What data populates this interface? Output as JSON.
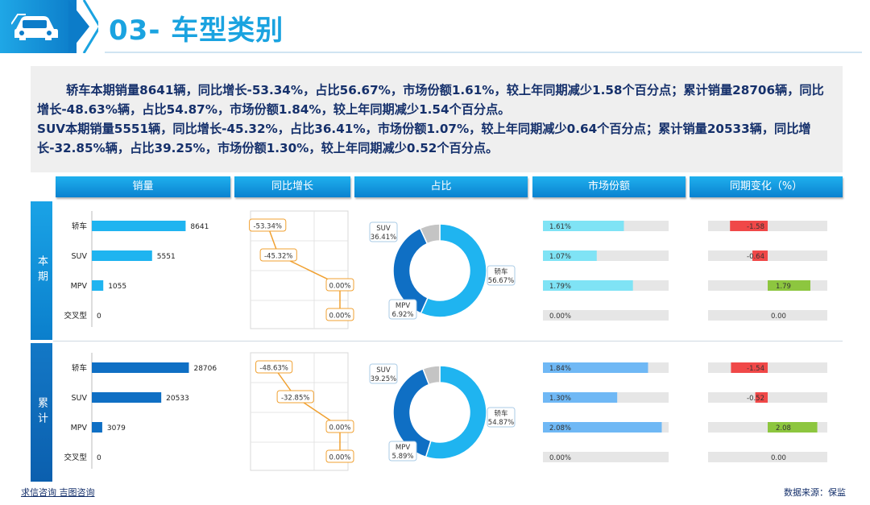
{
  "header": {
    "title": "03- 车型类别",
    "icon": "car-icon"
  },
  "summary": {
    "paragraph1": "轿车本期销量8641辆，同比增长-53.34%，占比56.67%，市场份额1.61%，较上年同期减少1.58个百分点；累计销量28706辆，同比增长-48.63%辆，占比54.87%，市场份额1.84%，较上年同期减少1.54个百分点。",
    "paragraph2": "SUV本期销量5551辆，同比增长-45.32%，占比36.41%，市场份额1.07%，较上年同期减少0.64个百分点；累计销量20533辆，同比增长-32.85%辆，占比39.25%，市场份额1.30%，较上年同期减少0.52个百分点。"
  },
  "columns": [
    "销量",
    "同比增长",
    "占比",
    "市场份额",
    "同期变化（%）"
  ],
  "sections": [
    {
      "label": "本期"
    },
    {
      "label": "累计"
    }
  ],
  "footer": {
    "left": "求信咨询  吉图咨询",
    "right": "数据来源：保监"
  },
  "colors": {
    "header_blue": "#1aa3e0",
    "bar_current": "#1fb4f0",
    "bar_cumulative": "#0f6fc4",
    "donut_light": "#1fb4f0",
    "donut_dark": "#0f6fc4",
    "donut_grey": "#c4c4c4",
    "share_current": "#7fe3f5",
    "share_cumulative": "#6fb8f5",
    "change_negative": "#f04848",
    "change_positive": "#8dc63f",
    "growth_line": "#f0a030"
  },
  "chart_data": [
    {
      "type": "bar",
      "panel": "销量",
      "section": "本期",
      "categories": [
        "轿车",
        "SUV",
        "MPV",
        "交叉型"
      ],
      "values": [
        8641,
        5551,
        1055,
        0
      ]
    },
    {
      "type": "line",
      "panel": "同比增长",
      "section": "本期",
      "categories": [
        "轿车",
        "SUV",
        "MPV",
        "交叉型"
      ],
      "values": [
        -53.34,
        -45.32,
        0.0,
        0.0
      ],
      "labels": [
        "-53.34%",
        "-45.32%",
        "0.00%",
        "0.00%"
      ]
    },
    {
      "type": "pie",
      "panel": "占比",
      "section": "本期",
      "slices": [
        {
          "name": "轿车",
          "value": 56.67,
          "label": "56.67%"
        },
        {
          "name": "SUV",
          "value": 36.41,
          "label": "36.41%"
        },
        {
          "name": "MPV",
          "value": 6.92,
          "label": "6.92%"
        }
      ]
    },
    {
      "type": "bar",
      "panel": "市场份额",
      "section": "本期",
      "categories": [
        "轿车",
        "SUV",
        "MPV",
        "交叉型"
      ],
      "values": [
        1.61,
        1.07,
        1.79,
        0.0
      ],
      "labels": [
        "1.61%",
        "1.07%",
        "1.79%",
        "0.00%"
      ],
      "xlim": [
        0,
        2.5
      ]
    },
    {
      "type": "bar",
      "panel": "同期变化（%）",
      "section": "本期",
      "categories": [
        "轿车",
        "SUV",
        "MPV",
        "交叉型"
      ],
      "values": [
        -1.58,
        -0.64,
        1.79,
        0.0
      ],
      "labels": [
        "-1.58",
        "-0.64",
        "1.79",
        "0.00"
      ],
      "xlim": [
        -2.5,
        2.5
      ]
    },
    {
      "type": "bar",
      "panel": "销量",
      "section": "累计",
      "categories": [
        "轿车",
        "SUV",
        "MPV",
        "交叉型"
      ],
      "values": [
        28706,
        20533,
        3079,
        0
      ]
    },
    {
      "type": "line",
      "panel": "同比增长",
      "section": "累计",
      "categories": [
        "轿车",
        "SUV",
        "MPV",
        "交叉型"
      ],
      "values": [
        -48.63,
        -32.85,
        0.0,
        0.0
      ],
      "labels": [
        "-48.63%",
        "-32.85%",
        "0.00%",
        "0.00%"
      ]
    },
    {
      "type": "pie",
      "panel": "占比",
      "section": "累计",
      "slices": [
        {
          "name": "轿车",
          "value": 54.87,
          "label": "54.87%"
        },
        {
          "name": "SUV",
          "value": 39.25,
          "label": "39.25%"
        },
        {
          "name": "MPV",
          "value": 5.89,
          "label": "5.89%"
        }
      ]
    },
    {
      "type": "bar",
      "panel": "市场份额",
      "section": "累计",
      "categories": [
        "轿车",
        "SUV",
        "MPV",
        "交叉型"
      ],
      "values": [
        1.84,
        1.3,
        2.08,
        0.0
      ],
      "labels": [
        "1.84%",
        "1.30%",
        "2.08%",
        "0.00%"
      ],
      "xlim": [
        0,
        2.2
      ]
    },
    {
      "type": "bar",
      "panel": "同期变化（%）",
      "section": "累计",
      "categories": [
        "轿车",
        "SUV",
        "MPV",
        "交叉型"
      ],
      "values": [
        -1.54,
        -0.52,
        2.08,
        0.0
      ],
      "labels": [
        "-1.54",
        "-0.52",
        "2.08",
        "0.00"
      ],
      "xlim": [
        -2.5,
        2.5
      ]
    }
  ]
}
